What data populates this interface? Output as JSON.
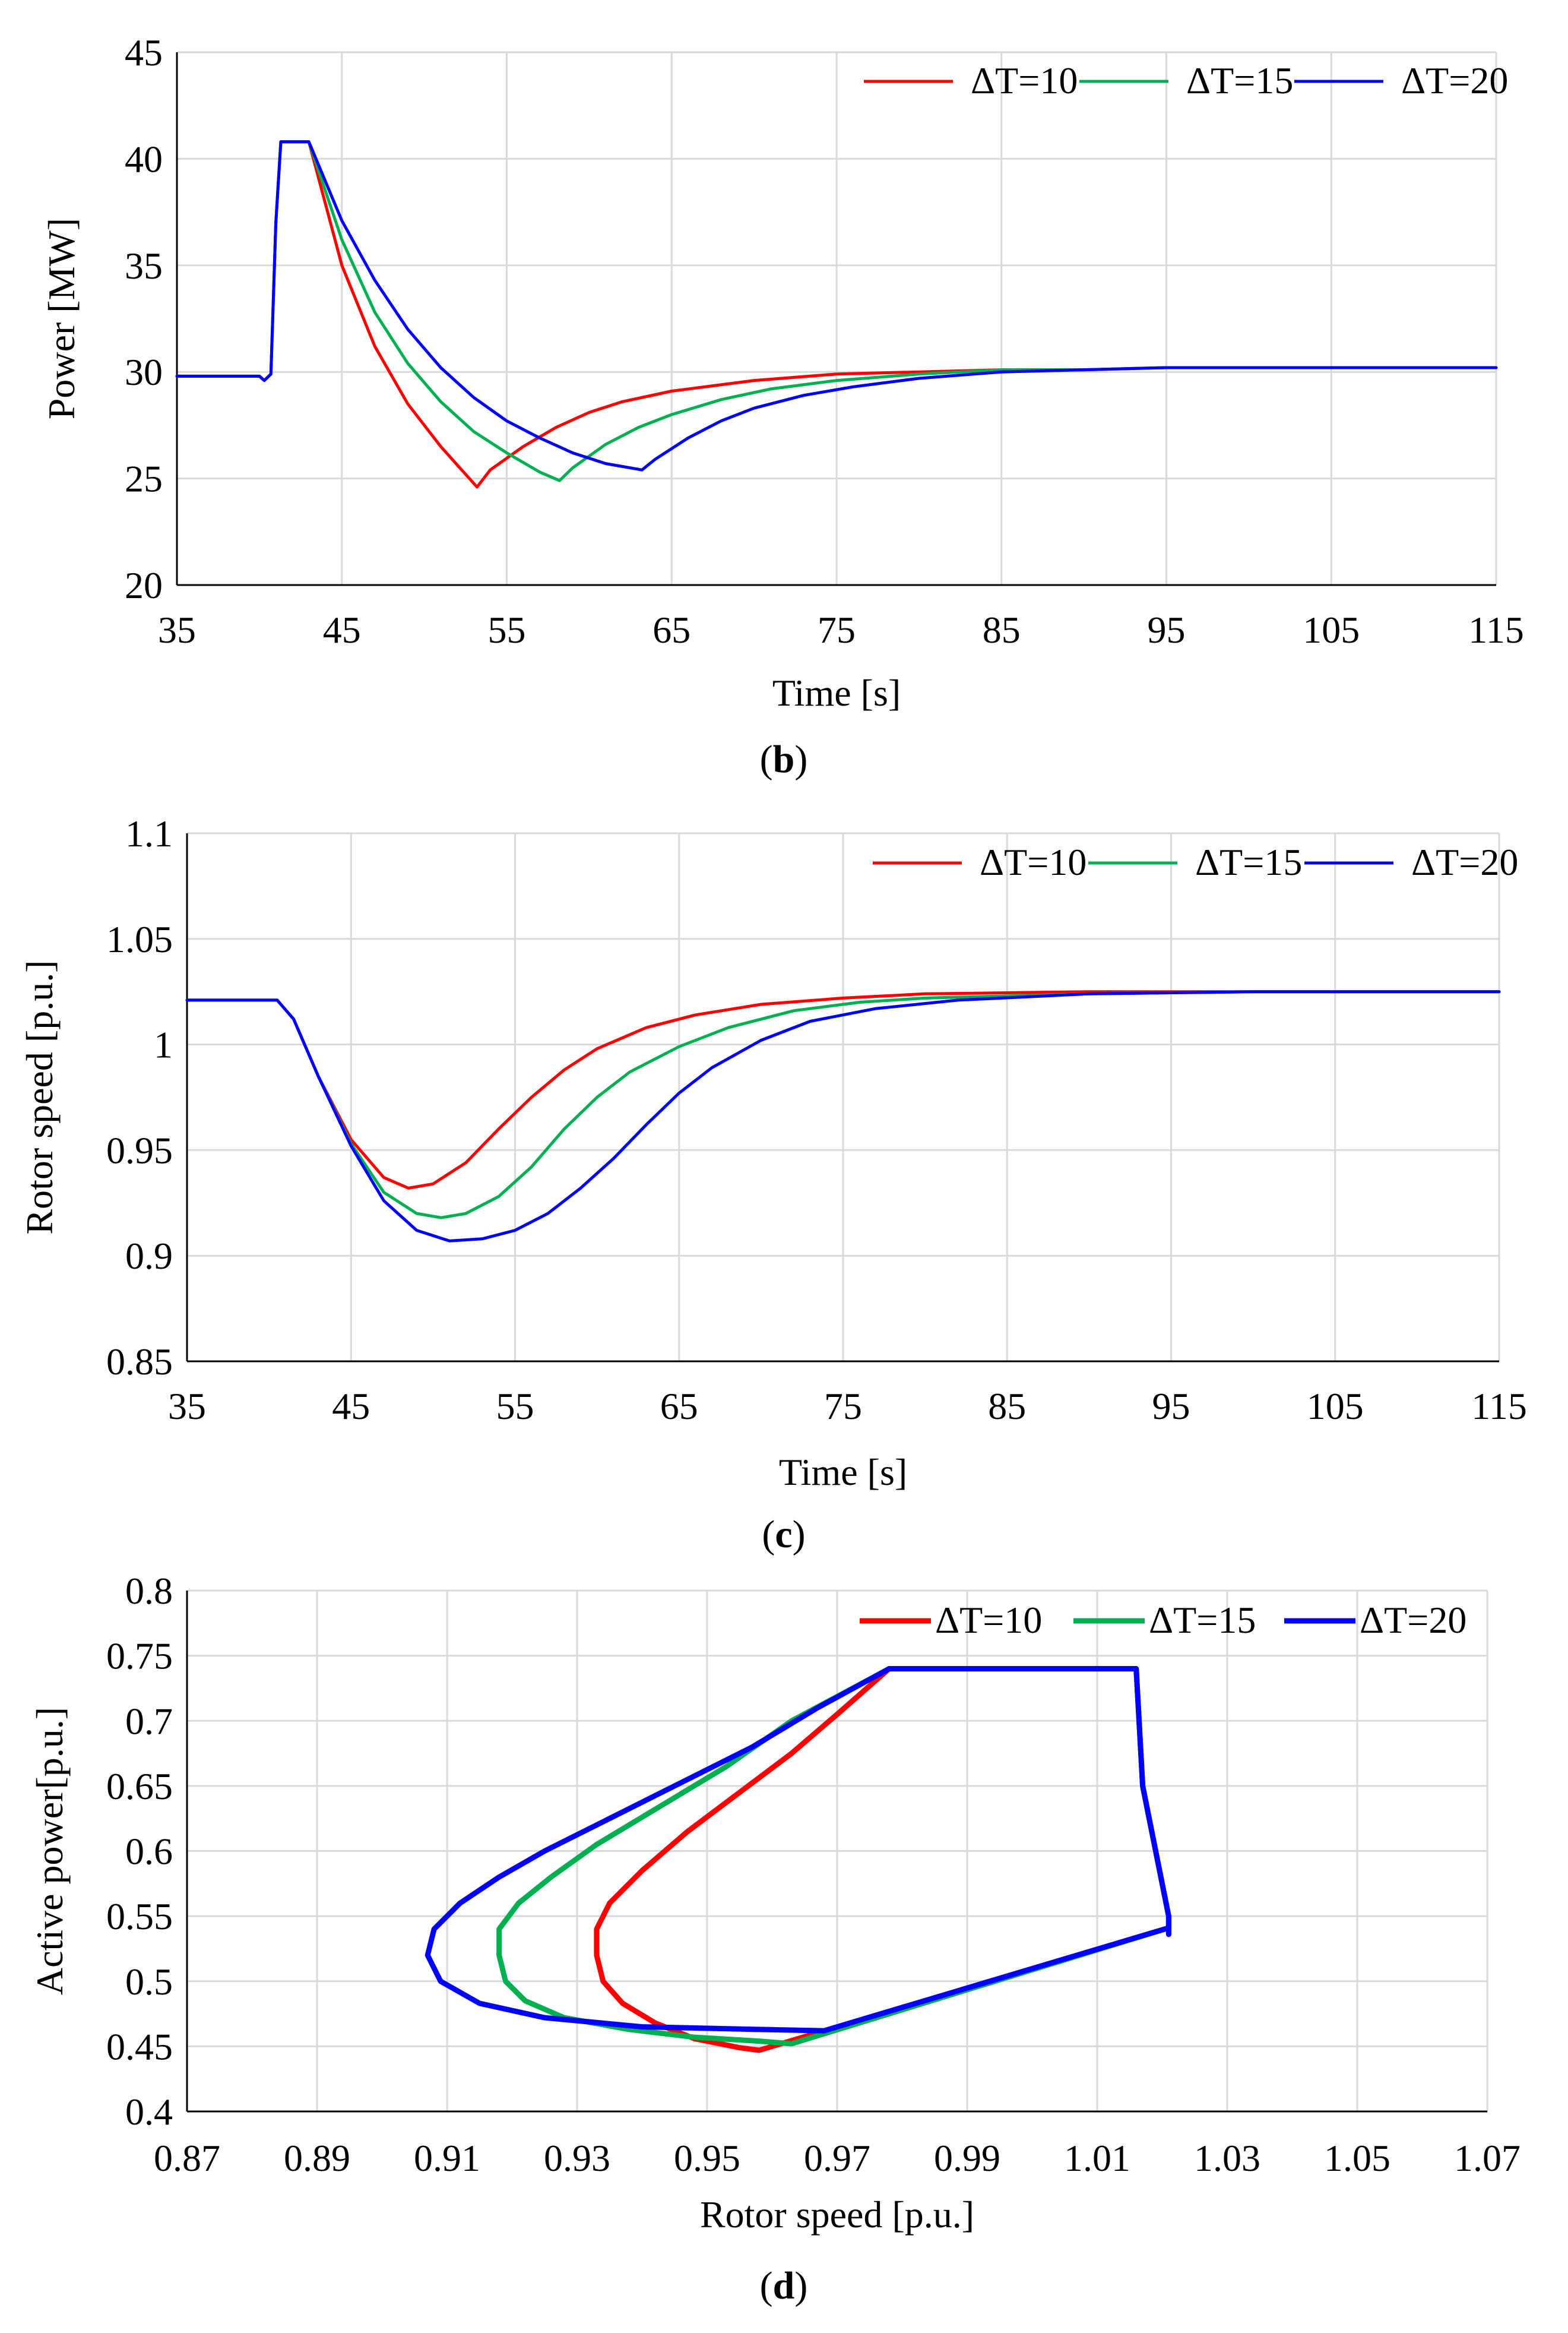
{
  "chart_data": [
    {
      "id": "b",
      "type": "line",
      "caption_letter": "b",
      "xlabel": "Time [s]",
      "ylabel": "Power [MW]",
      "xlim": [
        35,
        115
      ],
      "ylim": [
        20,
        45
      ],
      "xticks": [
        35,
        45,
        55,
        65,
        75,
        85,
        95,
        105,
        115
      ],
      "yticks": [
        20,
        25,
        30,
        35,
        40,
        45
      ],
      "xtick_labels": [
        "35",
        "45",
        "55",
        "65",
        "75",
        "85",
        "95",
        "105",
        "115"
      ],
      "ytick_labels": [
        "20",
        "25",
        "30",
        "35",
        "40",
        "45"
      ],
      "legend_position": "top-right",
      "series": [
        {
          "name": "ΔT=10",
          "color": "#ff0000",
          "points": [
            [
              35,
              29.8
            ],
            [
              40,
              29.8
            ],
            [
              40.3,
              29.6
            ],
            [
              40.7,
              29.9
            ],
            [
              41,
              37
            ],
            [
              41.3,
              40.8
            ],
            [
              43,
              40.8
            ],
            [
              45,
              35
            ],
            [
              47,
              31.2
            ],
            [
              49,
              28.5
            ],
            [
              51,
              26.5
            ],
            [
              52.5,
              25.2
            ],
            [
              53.2,
              24.6
            ],
            [
              54,
              25.4
            ],
            [
              56,
              26.5
            ],
            [
              58,
              27.4
            ],
            [
              60,
              28.1
            ],
            [
              62,
              28.6
            ],
            [
              65,
              29.1
            ],
            [
              70,
              29.6
            ],
            [
              75,
              29.9
            ],
            [
              80,
              30
            ],
            [
              85,
              30.1
            ],
            [
              90,
              30.1
            ],
            [
              95,
              30.2
            ],
            [
              100,
              30.2
            ],
            [
              115,
              30.2
            ]
          ]
        },
        {
          "name": "ΔT=15",
          "color": "#00b050",
          "points": [
            [
              35,
              29.8
            ],
            [
              40,
              29.8
            ],
            [
              40.3,
              29.6
            ],
            [
              40.7,
              29.9
            ],
            [
              41,
              37
            ],
            [
              41.3,
              40.8
            ],
            [
              43,
              40.8
            ],
            [
              45,
              36.2
            ],
            [
              47,
              32.8
            ],
            [
              49,
              30.4
            ],
            [
              51,
              28.6
            ],
            [
              53,
              27.2
            ],
            [
              55,
              26.2
            ],
            [
              57,
              25.3
            ],
            [
              58.2,
              24.9
            ],
            [
              59,
              25.5
            ],
            [
              61,
              26.6
            ],
            [
              63,
              27.4
            ],
            [
              65,
              28
            ],
            [
              68,
              28.7
            ],
            [
              71,
              29.2
            ],
            [
              75,
              29.6
            ],
            [
              80,
              29.9
            ],
            [
              85,
              30.1
            ],
            [
              90,
              30.1
            ],
            [
              95,
              30.2
            ],
            [
              100,
              30.2
            ],
            [
              115,
              30.2
            ]
          ]
        },
        {
          "name": "ΔT=20",
          "color": "#0000ff",
          "points": [
            [
              35,
              29.8
            ],
            [
              40,
              29.8
            ],
            [
              40.3,
              29.6
            ],
            [
              40.7,
              29.9
            ],
            [
              41,
              37
            ],
            [
              41.3,
              40.8
            ],
            [
              43,
              40.8
            ],
            [
              45,
              37.1
            ],
            [
              47,
              34.3
            ],
            [
              49,
              32
            ],
            [
              51,
              30.2
            ],
            [
              53,
              28.8
            ],
            [
              55,
              27.7
            ],
            [
              57,
              26.9
            ],
            [
              59,
              26.2
            ],
            [
              61,
              25.7
            ],
            [
              63.2,
              25.4
            ],
            [
              64,
              25.9
            ],
            [
              66,
              26.9
            ],
            [
              68,
              27.7
            ],
            [
              70,
              28.3
            ],
            [
              73,
              28.9
            ],
            [
              76,
              29.3
            ],
            [
              80,
              29.7
            ],
            [
              85,
              30
            ],
            [
              90,
              30.1
            ],
            [
              95,
              30.2
            ],
            [
              100,
              30.2
            ],
            [
              115,
              30.2
            ]
          ]
        }
      ]
    },
    {
      "id": "c",
      "type": "line",
      "caption_letter": "c",
      "xlabel": "Time [s]",
      "ylabel": "Rotor speed [p.u.]",
      "xlim": [
        35,
        115
      ],
      "ylim": [
        0.85,
        1.1
      ],
      "xticks": [
        35,
        45,
        55,
        65,
        75,
        85,
        95,
        105,
        115
      ],
      "yticks": [
        0.85,
        0.9,
        0.95,
        1,
        1.05,
        1.1
      ],
      "xtick_labels": [
        "35",
        "45",
        "55",
        "65",
        "75",
        "85",
        "95",
        "105",
        "115"
      ],
      "ytick_labels": [
        "0.85",
        "0.9",
        "0.95",
        "1",
        "1.05",
        "1.1"
      ],
      "legend_position": "top-right",
      "series": [
        {
          "name": "ΔT=10",
          "color": "#ff0000",
          "points": [
            [
              35,
              1.021
            ],
            [
              40.5,
              1.021
            ],
            [
              41.5,
              1.012
            ],
            [
              43,
              0.985
            ],
            [
              45,
              0.955
            ],
            [
              47,
              0.937
            ],
            [
              48.5,
              0.932
            ],
            [
              50,
              0.934
            ],
            [
              52,
              0.944
            ],
            [
              54,
              0.96
            ],
            [
              56,
              0.975
            ],
            [
              58,
              0.988
            ],
            [
              60,
              0.998
            ],
            [
              63,
              1.008
            ],
            [
              66,
              1.014
            ],
            [
              70,
              1.019
            ],
            [
              75,
              1.022
            ],
            [
              80,
              1.024
            ],
            [
              90,
              1.025
            ],
            [
              100,
              1.025
            ],
            [
              115,
              1.025
            ]
          ]
        },
        {
          "name": "ΔT=15",
          "color": "#00b050",
          "points": [
            [
              35,
              1.021
            ],
            [
              40.5,
              1.021
            ],
            [
              41.5,
              1.012
            ],
            [
              43,
              0.985
            ],
            [
              45,
              0.953
            ],
            [
              47,
              0.93
            ],
            [
              49,
              0.92
            ],
            [
              50.5,
              0.918
            ],
            [
              52,
              0.92
            ],
            [
              54,
              0.928
            ],
            [
              56,
              0.942
            ],
            [
              58,
              0.96
            ],
            [
              60,
              0.975
            ],
            [
              62,
              0.987
            ],
            [
              65,
              0.999
            ],
            [
              68,
              1.008
            ],
            [
              72,
              1.016
            ],
            [
              76,
              1.02
            ],
            [
              80,
              1.022
            ],
            [
              90,
              1.024
            ],
            [
              100,
              1.025
            ],
            [
              115,
              1.025
            ]
          ]
        },
        {
          "name": "ΔT=20",
          "color": "#0000ff",
          "points": [
            [
              35,
              1.021
            ],
            [
              40.5,
              1.021
            ],
            [
              41.5,
              1.012
            ],
            [
              43,
              0.985
            ],
            [
              45,
              0.952
            ],
            [
              47,
              0.926
            ],
            [
              49,
              0.912
            ],
            [
              51,
              0.907
            ],
            [
              53,
              0.908
            ],
            [
              55,
              0.912
            ],
            [
              57,
              0.92
            ],
            [
              59,
              0.932
            ],
            [
              61,
              0.946
            ],
            [
              63,
              0.962
            ],
            [
              65,
              0.977
            ],
            [
              67,
              0.989
            ],
            [
              70,
              1.002
            ],
            [
              73,
              1.011
            ],
            [
              77,
              1.017
            ],
            [
              82,
              1.021
            ],
            [
              90,
              1.024
            ],
            [
              100,
              1.025
            ],
            [
              115,
              1.025
            ]
          ]
        }
      ]
    },
    {
      "id": "d",
      "type": "line",
      "caption_letter": "d",
      "xlabel": "Rotor speed [p.u.]",
      "ylabel": "Active power[p.u.]",
      "xlim": [
        0.87,
        1.07
      ],
      "ylim": [
        0.4,
        0.8
      ],
      "xticks": [
        0.87,
        0.89,
        0.91,
        0.93,
        0.95,
        0.97,
        0.99,
        1.01,
        1.03,
        1.05,
        1.07
      ],
      "yticks": [
        0.4,
        0.45,
        0.5,
        0.55,
        0.6,
        0.65,
        0.7,
        0.75,
        0.8
      ],
      "xtick_labels": [
        "0.87",
        "0.89",
        "0.91",
        "0.93",
        "0.95",
        "0.97",
        "0.99",
        "1.01",
        "1.03",
        "1.05",
        "1.07"
      ],
      "ytick_labels": [
        "0.4",
        "0.45",
        "0.5",
        "0.55",
        "0.6",
        "0.65",
        "0.7",
        "0.75",
        "0.8"
      ],
      "legend_position": "top-right",
      "series": [
        {
          "name": "ΔT=10",
          "color": "#ff0000",
          "points": [
            [
              1.021,
              0.536
            ],
            [
              1.021,
              0.541
            ],
            [
              0.958,
              0.447
            ],
            [
              0.955,
              0.449
            ],
            [
              0.948,
              0.456
            ],
            [
              0.942,
              0.468
            ],
            [
              0.937,
              0.483
            ],
            [
              0.934,
              0.5
            ],
            [
              0.933,
              0.52
            ],
            [
              0.933,
              0.54
            ],
            [
              0.935,
              0.56
            ],
            [
              0.94,
              0.585
            ],
            [
              0.947,
              0.615
            ],
            [
              0.955,
              0.645
            ],
            [
              0.963,
              0.675
            ],
            [
              0.97,
              0.705
            ],
            [
              0.978,
              0.74
            ],
            [
              1.016,
              0.74
            ],
            [
              1.017,
              0.65
            ],
            [
              1.021,
              0.55
            ],
            [
              1.021,
              0.536
            ]
          ]
        },
        {
          "name": "ΔT=15",
          "color": "#00b050",
          "points": [
            [
              1.021,
              0.536
            ],
            [
              1.021,
              0.541
            ],
            [
              0.963,
              0.452
            ],
            [
              0.958,
              0.454
            ],
            [
              0.948,
              0.457
            ],
            [
              0.938,
              0.463
            ],
            [
              0.928,
              0.472
            ],
            [
              0.922,
              0.485
            ],
            [
              0.919,
              0.5
            ],
            [
              0.918,
              0.52
            ],
            [
              0.918,
              0.54
            ],
            [
              0.921,
              0.56
            ],
            [
              0.926,
              0.58
            ],
            [
              0.933,
              0.605
            ],
            [
              0.943,
              0.635
            ],
            [
              0.953,
              0.665
            ],
            [
              0.963,
              0.7
            ],
            [
              0.978,
              0.74
            ],
            [
              1.016,
              0.74
            ],
            [
              1.017,
              0.65
            ],
            [
              1.021,
              0.55
            ],
            [
              1.021,
              0.536
            ]
          ]
        },
        {
          "name": "ΔT=20",
          "color": "#0000ff",
          "points": [
            [
              1.021,
              0.536
            ],
            [
              1.021,
              0.541
            ],
            [
              0.968,
              0.462
            ],
            [
              0.958,
              0.463
            ],
            [
              0.94,
              0.465
            ],
            [
              0.925,
              0.472
            ],
            [
              0.915,
              0.483
            ],
            [
              0.909,
              0.5
            ],
            [
              0.907,
              0.52
            ],
            [
              0.908,
              0.54
            ],
            [
              0.912,
              0.56
            ],
            [
              0.918,
              0.58
            ],
            [
              0.925,
              0.6
            ],
            [
              0.935,
              0.625
            ],
            [
              0.945,
              0.65
            ],
            [
              0.957,
              0.68
            ],
            [
              0.967,
              0.71
            ],
            [
              0.978,
              0.74
            ],
            [
              1.016,
              0.74
            ],
            [
              1.017,
              0.65
            ],
            [
              1.021,
              0.55
            ],
            [
              1.021,
              0.536
            ]
          ]
        }
      ]
    }
  ]
}
